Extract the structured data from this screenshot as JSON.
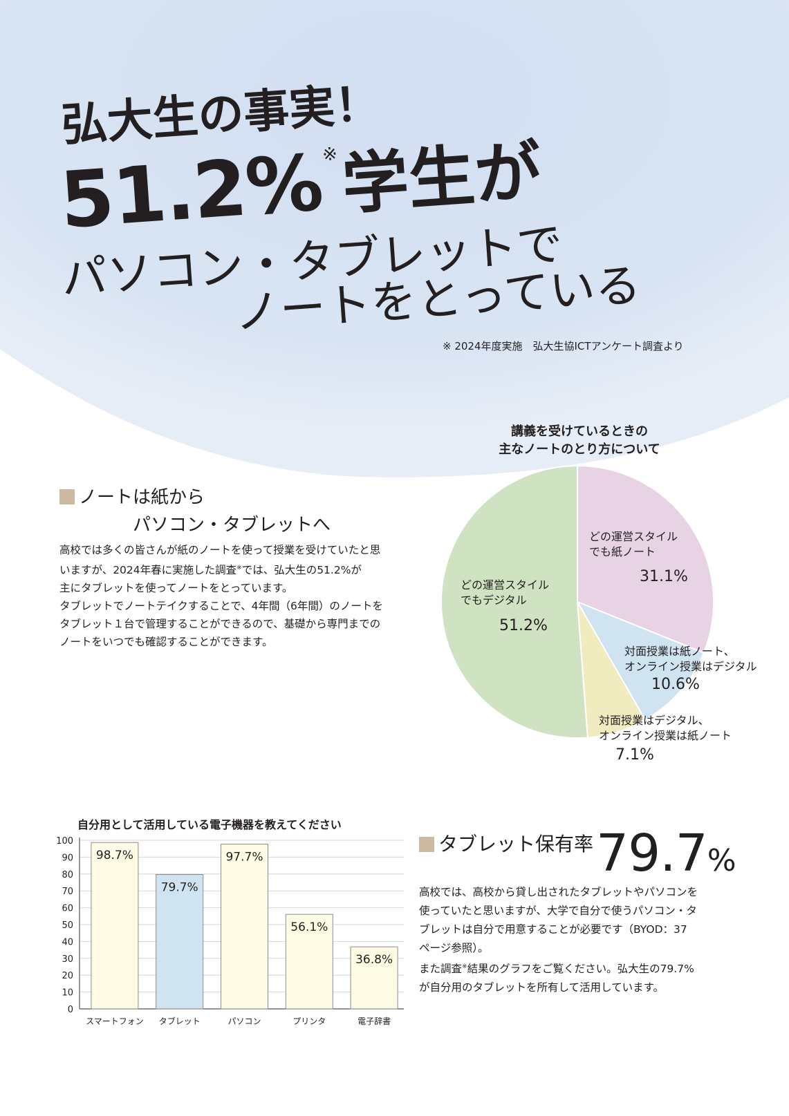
{
  "header": {
    "line1": "弘大生の事実！",
    "percent": "51.2%",
    "note_mark": "※",
    "students": "学生が",
    "line3": "パソコン・タブレットで",
    "line4": "ノートをとっている",
    "survey_note": "※ 2024年度実施　弘大生協ICTアンケート調査より"
  },
  "section1": {
    "heading_line1": "ノートは紙から",
    "heading_line2": "パソコン・タブレットへ",
    "body_part1": "高校では多くの皆さんが紙のノートを使って授業を受けていたと思\nいますが、2024年春に実施した調査",
    "body_mark": "※",
    "body_part2": "では、弘大生の51.2%が\n主にタブレットを使ってノートをとっています。\nタブレットでノートテイクすることで、4年間（6年間）のノートを\nタブレット１台で管理することができるので、基礎から専門までの\nノートをいつでも確認することができます。"
  },
  "pie_chart": {
    "title": "講義を受けているときの\n主なノートのとり方について",
    "colors": {
      "digital": "#cfe2c1",
      "paper": "#e8d3e4",
      "mix1": "#cfe3f1",
      "mix2": "#f0ecbf",
      "stroke": "#ffffff"
    }
  },
  "section2": {
    "heading": "タブレット保有率",
    "value": "79.7",
    "unit": "%",
    "body_part1": "高校では、高校から貸し出されたタブレットやパソコンを\n使っていたと思いますが、大学で自分で使うパソコン・タ\nブレットは自分で用意することが必要です（BYOD：37\nページ参照）。\nまた調査",
    "body_mark": "※",
    "body_part2": "結果のグラフをご覧ください。弘大生の79.7%\nが自分用のタブレットを所有して活用しています。"
  },
  "bar_chart": {
    "title": "自分用として活用している電子機器を教えてください",
    "colors": {
      "default": "#fdfbe3",
      "highlight": "#cfe3f1",
      "stroke": "#8c8c8c",
      "grid": "#d6d6d6"
    }
  },
  "chart_data": [
    {
      "type": "pie",
      "title": "講義を受けているときの\n主なノートのとり方について",
      "slices": [
        {
          "name": "どの運営スタイル\nでも紙ノート",
          "value": 31.1,
          "label": "31.1%"
        },
        {
          "name": "対面授業は紙ノート、\nオンライン授業はデジタル",
          "value": 10.6,
          "label": "10.6%"
        },
        {
          "name": "対面授業はデジタル、\nオンライン授業は紙ノート",
          "value": 7.1,
          "label": "7.1%"
        },
        {
          "name": "どの運営スタイル\nでもデジタル",
          "value": 51.2,
          "label": "51.2%"
        }
      ]
    },
    {
      "type": "bar",
      "title": "自分用として活用している電子機器を教えてください",
      "categories": [
        "スマートフォン",
        "タブレット",
        "パソコン",
        "プリンタ",
        "電子辞書"
      ],
      "values": [
        98.7,
        79.7,
        97.7,
        56.1,
        36.8
      ],
      "value_labels": [
        "98.7%",
        "79.7%",
        "97.7%",
        "56.1%",
        "36.8%"
      ],
      "highlight": "タブレット",
      "ylim": [
        0,
        100
      ],
      "yticks": [
        "0",
        "10",
        "20",
        "30",
        "40",
        "50",
        "60",
        "70",
        "80",
        "90",
        "100"
      ],
      "grid": true
    }
  ]
}
